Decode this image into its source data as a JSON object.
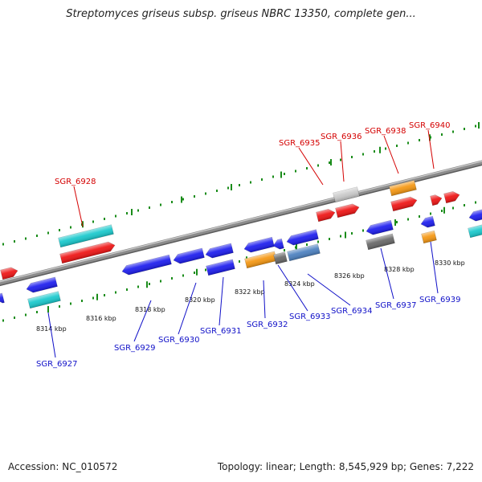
{
  "title": "Streptomyces griseus subsp. griseus NBRC 13350, complete gen...",
  "footer": {
    "accession": "Accession: NC_010572",
    "stats": "Topology: linear; Length: 8,545,929 bp; Genes: 7,222"
  },
  "colors": {
    "red": "#ee1111",
    "blue": "#1a1aee",
    "cyan": "#16c8cc",
    "orange": "#f5960f",
    "gray": "#c8c8c8",
    "darkgray": "#666666",
    "steel": "#4a7fbf",
    "tick": "#1a8c1a",
    "backbone": "#8c8c8c",
    "label_fwd": "#d40000",
    "label_rev": "#1010c8"
  },
  "ticks": [
    {
      "kbp": 8314,
      "label": "8314 kbp"
    },
    {
      "kbp": 8316,
      "label": "8316 kbp"
    },
    {
      "kbp": 8318,
      "label": "8318 kbp"
    },
    {
      "kbp": 8320,
      "label": "8320 kbp"
    },
    {
      "kbp": 8322,
      "label": "8322 kbp"
    },
    {
      "kbp": 8324,
      "label": "8324 kbp"
    },
    {
      "kbp": 8326,
      "label": "8326 kbp"
    },
    {
      "kbp": 8328,
      "label": "8328 kbp"
    },
    {
      "kbp": 8330,
      "label": "8330 kbp"
    }
  ],
  "fwd_labels": [
    {
      "label": "SGR_6928"
    },
    {
      "label": "SGR_6935"
    },
    {
      "label": "SGR_6936"
    },
    {
      "label": "SGR_6938"
    },
    {
      "label": "SGR_6940"
    }
  ],
  "rev_labels": [
    {
      "label": "SGR_6927"
    },
    {
      "label": "SGR_6929"
    },
    {
      "label": "SGR_6930"
    },
    {
      "label": "SGR_6931"
    },
    {
      "label": "SGR_6932"
    },
    {
      "label": "SGR_6933"
    },
    {
      "label": "SGR_6934"
    },
    {
      "label": "SGR_6937"
    },
    {
      "label": "SGR_6939"
    }
  ]
}
